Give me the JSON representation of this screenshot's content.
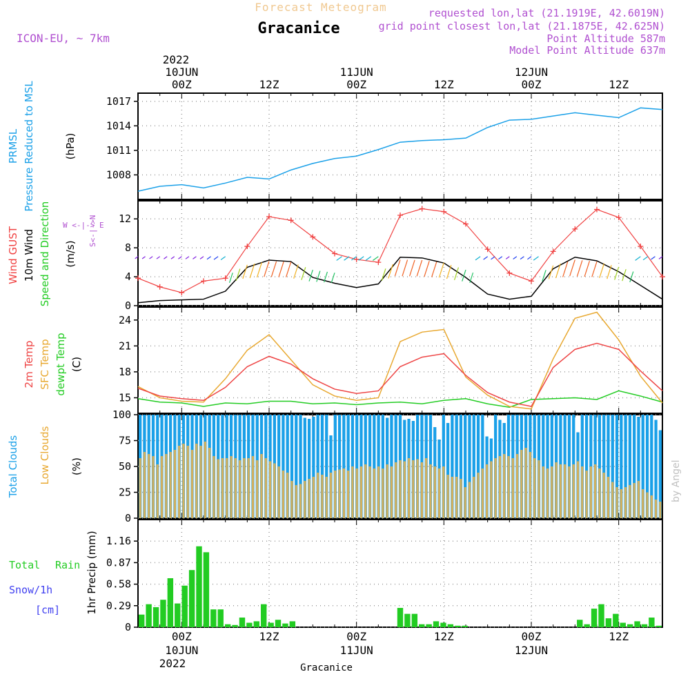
{
  "header": {
    "product": "Forecast Meteogram",
    "station": "Gracanice",
    "model": "ICON-EU, ~ 7km",
    "requested": "requested lon,lat (21.1919E, 42.6019N)",
    "gridpoint": "grid point closest lon,lat (21.1875E, 42.625N)",
    "point_alt": "Point Altitude 587m",
    "model_alt": "Model Point Altitude 637m",
    "footer_station": "Gracanice",
    "watermark": "by Angel"
  },
  "time_axis": {
    "hours_total": 72,
    "top_year": "2022",
    "bottom_year": "2022",
    "top_labels": [
      {
        "hour": 6,
        "lines": [
          "10JUN",
          "00Z"
        ]
      },
      {
        "hour": 18,
        "lines": [
          "12Z"
        ]
      },
      {
        "hour": 30,
        "lines": [
          "11JUN",
          "00Z"
        ]
      },
      {
        "hour": 42,
        "lines": [
          "12Z"
        ]
      },
      {
        "hour": 54,
        "lines": [
          "12JUN",
          "00Z"
        ]
      },
      {
        "hour": 66,
        "lines": [
          "12Z"
        ]
      }
    ],
    "bottom_labels": [
      {
        "hour": 6,
        "lines": [
          "00Z",
          "10JUN"
        ]
      },
      {
        "hour": 18,
        "lines": [
          "12Z"
        ]
      },
      {
        "hour": 30,
        "lines": [
          "00Z",
          "11JUN"
        ]
      },
      {
        "hour": 42,
        "lines": [
          "12Z"
        ]
      },
      {
        "hour": 54,
        "lines": [
          "00Z",
          "12JUN"
        ]
      },
      {
        "hour": 66,
        "lines": [
          "12Z"
        ]
      }
    ]
  },
  "panel_labels": {
    "pressure": [
      "PRMSL",
      "Pressure Reduced to MSL",
      "(hPa)"
    ],
    "wind": [
      "Wind GUST",
      "10m Wind",
      "Speed and Direction",
      "(m/s)"
    ],
    "compass": {
      "n": "N",
      "s": "S",
      "w": "W",
      "e": "E",
      "ns": "S<-|->N",
      "we": "W <-|-> E"
    },
    "temp": [
      "2m Temp",
      "SFC Temp",
      "dewpt Temp",
      "(C)"
    ],
    "clouds": [
      "Total Clouds",
      "Low Clouds",
      "(%)"
    ],
    "precip": [
      "Total",
      "Rain",
      "Snow/1h",
      "[cm]",
      "1hr Precip (mm)"
    ]
  },
  "colors": {
    "pressure": "#1aa0e8",
    "gust": "#f04040",
    "wind": "#000000",
    "temp2m": "#ee4444",
    "sfc": "#e8a830",
    "dewpt": "#22cc22",
    "total_clouds": "#1aa0e8",
    "low_clouds": "#d0b060",
    "precip": "#22cc22",
    "title_orange": "#f0c890",
    "purple": "#b050d0",
    "snow_blue": "#4040f0"
  },
  "chart_data": [
    {
      "type": "line",
      "name": "pressure",
      "title": "PRMSL Pressure Reduced to MSL",
      "ylabel": "(hPa)",
      "ylim": [
        1005,
        1018
      ],
      "yticks": [
        1008,
        1011,
        1014,
        1017
      ],
      "x": [
        0,
        3,
        6,
        9,
        12,
        15,
        18,
        21,
        24,
        27,
        30,
        33,
        36,
        39,
        42,
        45,
        48,
        51,
        54,
        57,
        60,
        63,
        66,
        69,
        72
      ],
      "series": [
        {
          "name": "PRMSL",
          "values": [
            1006.0,
            1006.6,
            1006.8,
            1006.4,
            1007.0,
            1007.7,
            1007.5,
            1008.6,
            1009.4,
            1010.0,
            1010.3,
            1011.1,
            1012.0,
            1012.2,
            1012.3,
            1012.5,
            1013.8,
            1014.7,
            1014.8,
            1015.2,
            1015.6,
            1015.3,
            1015.0,
            1016.2,
            1016.0
          ]
        }
      ]
    },
    {
      "type": "line",
      "name": "wind",
      "title": "Wind GUST / 10m Wind Speed and Direction",
      "ylabel": "(m/s)",
      "ylim": [
        0,
        14.5
      ],
      "yticks": [
        0,
        4,
        8,
        12
      ],
      "x": [
        0,
        3,
        6,
        9,
        12,
        15,
        18,
        21,
        24,
        27,
        30,
        33,
        36,
        39,
        42,
        45,
        48,
        51,
        54,
        57,
        60,
        63,
        66,
        69,
        72
      ],
      "series": [
        {
          "name": "Wind GUST",
          "values": [
            3.8,
            2.6,
            1.8,
            3.4,
            3.8,
            8.2,
            12.3,
            11.8,
            9.5,
            7.2,
            6.4,
            6.0,
            12.5,
            13.4,
            13.0,
            11.3,
            7.8,
            4.5,
            3.4,
            7.5,
            10.6,
            13.3,
            12.2,
            8.2,
            4.0
          ]
        },
        {
          "name": "10m Wind",
          "values": [
            0.4,
            0.7,
            0.8,
            0.9,
            2.0,
            5.3,
            6.3,
            6.1,
            3.9,
            3.1,
            2.5,
            3.0,
            6.7,
            6.6,
            5.9,
            3.9,
            1.6,
            0.9,
            1.3,
            5.1,
            6.7,
            6.2,
            4.7,
            2.8,
            0.9
          ]
        }
      ]
    },
    {
      "type": "line",
      "name": "temperature",
      "title": "2m Temp / SFC Temp / dewpt Temp",
      "ylabel": "(C)",
      "ylim": [
        13.2,
        25.5
      ],
      "yticks": [
        15,
        18,
        21,
        24
      ],
      "x": [
        0,
        3,
        6,
        9,
        12,
        15,
        18,
        21,
        24,
        27,
        30,
        33,
        36,
        39,
        42,
        45,
        48,
        51,
        54,
        57,
        60,
        63,
        66,
        69,
        72
      ],
      "series": [
        {
          "name": "2m Temp",
          "values": [
            16.1,
            15.2,
            14.9,
            14.7,
            16.2,
            18.6,
            19.8,
            18.9,
            17.2,
            16.0,
            15.5,
            15.8,
            18.6,
            19.7,
            20.1,
            17.6,
            15.6,
            14.5,
            14.0,
            18.5,
            20.6,
            21.3,
            20.6,
            18.1,
            15.8
          ]
        },
        {
          "name": "SFC Temp",
          "values": [
            16.3,
            15.0,
            14.6,
            14.5,
            17.2,
            20.5,
            22.3,
            19.4,
            16.5,
            15.2,
            14.7,
            15.0,
            21.5,
            22.6,
            22.9,
            17.4,
            15.3,
            14.0,
            13.7,
            19.5,
            24.2,
            24.9,
            21.7,
            17.5,
            14.4
          ]
        },
        {
          "name": "dewpt Temp",
          "values": [
            14.9,
            14.5,
            14.4,
            14.0,
            14.4,
            14.3,
            14.6,
            14.6,
            14.3,
            14.4,
            14.2,
            14.4,
            14.5,
            14.3,
            14.7,
            14.9,
            14.3,
            13.9,
            14.8,
            14.9,
            15.0,
            14.8,
            15.8,
            15.2,
            14.5
          ]
        }
      ]
    },
    {
      "type": "bar",
      "name": "clouds",
      "title": "Total Clouds / Low Clouds",
      "ylabel": "(%)",
      "ylim": [
        0,
        100
      ],
      "yticks": [
        0,
        25,
        50,
        75,
        100
      ],
      "series": [
        {
          "name": "Total Clouds",
          "values": [
            100,
            100,
            100,
            100,
            100,
            100,
            100,
            100,
            100,
            100,
            100,
            100,
            100,
            100,
            100,
            100,
            100,
            100,
            100,
            100,
            100,
            100,
            100,
            100,
            100,
            100,
            100,
            100,
            100,
            100,
            100,
            100,
            100,
            100,
            100,
            100,
            100,
            100,
            97,
            96,
            98,
            100,
            100,
            100,
            80,
            100,
            100,
            100,
            100,
            100,
            100,
            100,
            100,
            100,
            100,
            100,
            100,
            97,
            100,
            100,
            100,
            95,
            96,
            94,
            100,
            100,
            100,
            100,
            88,
            76,
            100,
            92,
            100,
            100,
            100,
            100,
            100,
            100,
            100,
            100,
            79,
            77,
            100,
            95,
            92,
            100,
            100,
            100,
            100,
            100,
            100,
            100,
            100,
            100,
            100,
            100,
            100,
            100,
            100,
            100,
            100,
            83,
            100,
            100,
            100,
            100,
            100,
            100,
            100,
            100,
            100,
            100,
            100,
            100,
            100,
            98,
            100,
            100,
            100,
            95,
            85
          ]
        },
        {
          "name": "Low Clouds",
          "values": [
            58,
            64,
            62,
            60,
            52,
            60,
            62,
            64,
            66,
            70,
            72,
            70,
            66,
            72,
            70,
            74,
            68,
            60,
            57,
            58,
            58,
            60,
            58,
            56,
            58,
            58,
            60,
            56,
            62,
            58,
            55,
            53,
            50,
            46,
            44,
            36,
            32,
            33,
            36,
            38,
            40,
            44,
            42,
            40,
            44,
            46,
            47,
            48,
            46,
            50,
            48,
            50,
            52,
            50,
            48,
            50,
            48,
            52,
            50,
            54,
            56,
            55,
            58,
            56,
            57,
            54,
            58,
            52,
            50,
            48,
            50,
            42,
            40,
            40,
            38,
            30,
            35,
            40,
            44,
            48,
            52,
            55,
            58,
            60,
            62,
            60,
            58,
            62,
            66,
            68,
            64,
            58,
            56,
            50,
            48,
            50,
            54,
            52,
            52,
            50,
            52,
            55,
            50,
            46,
            50,
            52,
            48,
            44,
            40,
            35,
            30,
            28,
            30,
            32,
            34,
            36,
            28,
            25,
            22,
            18,
            16
          ]
        }
      ]
    },
    {
      "type": "bar",
      "name": "precip",
      "title": "1hr Precip (mm)",
      "ylabel": "1hr Precip (mm)",
      "ylim": [
        0,
        1.45
      ],
      "yticks": [
        0,
        0.29,
        0.58,
        0.87,
        1.16
      ],
      "yticklabels": [
        "0",
        "0.29",
        "0.58",
        "0.87",
        "1.16"
      ],
      "series": [
        {
          "name": "Total Rain",
          "values": [
            0.17,
            0.31,
            0.27,
            0.37,
            0.66,
            0.32,
            0.56,
            0.77,
            1.09,
            1.01,
            0.24,
            0.24,
            0.04,
            0.03,
            0.13,
            0.06,
            0.08,
            0.31,
            0.06,
            0.1,
            0.05,
            0.08,
            0,
            0,
            0,
            0,
            0,
            0,
            0,
            0,
            0,
            0,
            0,
            0,
            0,
            0,
            0.26,
            0.18,
            0.18,
            0.04,
            0.04,
            0.08,
            0.06,
            0.04,
            0.02,
            0.02,
            0,
            0,
            0,
            0,
            0,
            0,
            0,
            0,
            0,
            0,
            0,
            0,
            0,
            0,
            0,
            0.1,
            0.04,
            0.25,
            0.31,
            0.12,
            0.18,
            0.06,
            0.04,
            0.08,
            0.04,
            0.13,
            0.02
          ]
        }
      ]
    }
  ]
}
